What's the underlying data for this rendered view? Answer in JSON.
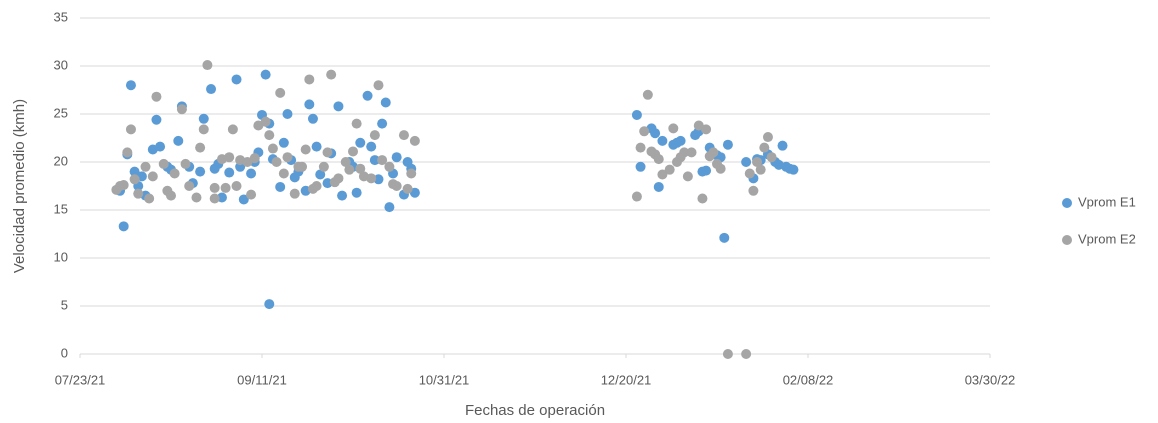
{
  "chart_data": {
    "type": "scatter",
    "xlabel": "Fechas de operación",
    "ylabel": "Velocidad promedio (kmh)",
    "xlim": [
      "07/23/21",
      "03/30/22"
    ],
    "xticks": [
      "07/23/21",
      "09/11/21",
      "10/31/21",
      "12/20/21",
      "02/08/22",
      "03/30/22"
    ],
    "ylim": [
      0,
      35
    ],
    "yticks": [
      0,
      5,
      10,
      15,
      20,
      25,
      30,
      35
    ],
    "grid": true,
    "legend": "right",
    "series": [
      {
        "name": "Vprom E1",
        "color": "#5b9bd5",
        "x": [
          "08/03/21",
          "08/04/21",
          "08/05/21",
          "08/06/21",
          "08/07/21",
          "08/08/21",
          "08/09/21",
          "08/10/21",
          "08/12/21",
          "08/13/21",
          "08/14/21",
          "08/16/21",
          "08/17/21",
          "08/19/21",
          "08/20/21",
          "08/22/21",
          "08/23/21",
          "08/25/21",
          "08/26/21",
          "08/28/21",
          "08/29/21",
          "08/30/21",
          "08/31/21",
          "09/02/21",
          "09/04/21",
          "09/05/21",
          "09/06/21",
          "09/08/21",
          "09/09/21",
          "09/10/21",
          "09/11/21",
          "09/12/21",
          "09/13/21",
          "09/13/21",
          "09/14/21",
          "09/16/21",
          "09/17/21",
          "09/18/21",
          "09/19/21",
          "09/20/21",
          "09/21/21",
          "09/23/21",
          "09/24/21",
          "09/25/21",
          "09/26/21",
          "09/27/21",
          "09/29/21",
          "09/30/21",
          "10/02/21",
          "10/03/21",
          "10/05/21",
          "10/06/21",
          "10/07/21",
          "10/08/21",
          "10/10/21",
          "10/11/21",
          "10/12/21",
          "10/13/21",
          "10/14/21",
          "10/15/21",
          "10/16/21",
          "10/17/21",
          "10/18/21",
          "10/20/21",
          "10/21/21",
          "10/22/21",
          "10/23/21",
          "12/23/21",
          "12/24/21",
          "12/27/21",
          "12/28/21",
          "12/29/21",
          "12/30/21",
          "01/02/22",
          "01/03/22",
          "01/04/22",
          "01/08/22",
          "01/09/22",
          "01/10/22",
          "01/11/22",
          "01/12/22",
          "01/14/22",
          "01/15/22",
          "01/16/22",
          "01/17/22",
          "01/22/22",
          "01/24/22",
          "01/25/22",
          "01/26/22",
          "01/28/22",
          "01/30/22",
          "01/31/22",
          "02/01/22",
          "02/02/22",
          "02/03/22",
          "02/04/22"
        ],
        "values": [
          17,
          13.3,
          20.8,
          28,
          19,
          17.5,
          18.5,
          16.5,
          21.3,
          24.4,
          21.6,
          19.5,
          19.2,
          22.2,
          25.8,
          19.5,
          17.8,
          19,
          24.5,
          27.6,
          19.3,
          19.8,
          16.3,
          18.9,
          28.6,
          19.5,
          16.1,
          18.8,
          20,
          21,
          24.9,
          29.1,
          24,
          5.2,
          20.3,
          17.4,
          22,
          25,
          20.2,
          18.4,
          19,
          17,
          26,
          24.5,
          21.6,
          18.7,
          17.8,
          20.9,
          25.8,
          16.5,
          20,
          19.5,
          16.8,
          22,
          26.9,
          21.6,
          20.2,
          18.2,
          24,
          26.2,
          15.3,
          18.8,
          20.5,
          16.6,
          20,
          19.3,
          16.8,
          24.9,
          19.5,
          23.5,
          23,
          17.4,
          22.2,
          21.8,
          22,
          22.2,
          22.8,
          23.2,
          19,
          19.1,
          21.5,
          20.7,
          20.5,
          12.1,
          21.8,
          20,
          18.3,
          20.3,
          20.2,
          20.8,
          20,
          19.7,
          21.7,
          19.5,
          19.3,
          19.2
        ]
      },
      {
        "name": "Vprom E2",
        "color": "#a5a5a5",
        "x": [
          "08/02/21",
          "08/03/21",
          "08/04/21",
          "08/05/21",
          "08/06/21",
          "08/07/21",
          "08/08/21",
          "08/10/21",
          "08/11/21",
          "08/12/21",
          "08/13/21",
          "08/15/21",
          "08/16/21",
          "08/17/21",
          "08/18/21",
          "08/20/21",
          "08/21/21",
          "08/22/21",
          "08/24/21",
          "08/25/21",
          "08/26/21",
          "08/27/21",
          "08/29/21",
          "08/29/21",
          "08/31/21",
          "09/01/21",
          "09/02/21",
          "09/03/21",
          "09/04/21",
          "09/05/21",
          "09/07/21",
          "09/08/21",
          "09/09/21",
          "09/10/21",
          "09/12/21",
          "09/13/21",
          "09/14/21",
          "09/15/21",
          "09/16/21",
          "09/17/21",
          "09/18/21",
          "09/20/21",
          "09/21/21",
          "09/22/21",
          "09/23/21",
          "09/24/21",
          "09/25/21",
          "09/26/21",
          "09/28/21",
          "09/29/21",
          "09/30/21",
          "10/01/21",
          "10/02/21",
          "10/04/21",
          "10/05/21",
          "10/06/21",
          "10/07/21",
          "10/08/21",
          "10/09/21",
          "10/11/21",
          "10/12/21",
          "10/13/21",
          "10/14/21",
          "10/16/21",
          "10/17/21",
          "10/18/21",
          "10/20/21",
          "10/21/21",
          "10/22/21",
          "10/23/21",
          "12/23/21",
          "12/24/21",
          "12/25/21",
          "12/26/21",
          "12/27/21",
          "12/28/21",
          "12/29/21",
          "12/30/21",
          "01/01/22",
          "01/02/22",
          "01/03/22",
          "01/04/22",
          "01/05/22",
          "01/06/22",
          "01/07/22",
          "01/09/22",
          "01/10/22",
          "01/11/22",
          "01/12/22",
          "01/13/22",
          "01/14/22",
          "01/15/22",
          "01/17/22",
          "01/22/22",
          "01/23/22",
          "01/24/22",
          "01/25/22",
          "01/26/22",
          "01/27/22",
          "01/28/22",
          "01/29/22"
        ],
        "values": [
          17.1,
          17.5,
          17.6,
          21,
          23.4,
          18.2,
          16.7,
          19.5,
          16.2,
          18.5,
          26.8,
          19.8,
          17,
          16.5,
          18.8,
          25.5,
          19.8,
          17.5,
          16.3,
          21.5,
          23.4,
          30.1,
          16.2,
          17.3,
          20.3,
          17.3,
          20.5,
          23.4,
          17.5,
          20.2,
          20,
          16.6,
          20.4,
          23.8,
          24.2,
          22.8,
          21.4,
          20,
          27.2,
          18.8,
          20.5,
          16.7,
          19.5,
          19.5,
          21.3,
          28.6,
          17.2,
          17.5,
          19.5,
          21,
          29.1,
          17.9,
          18.3,
          20,
          19.2,
          21.1,
          24,
          19.3,
          18.5,
          18.3,
          22.8,
          28,
          20.2,
          19.5,
          17.7,
          17.5,
          22.8,
          17.2,
          18.8,
          22.2,
          16.4,
          21.5,
          23.2,
          27,
          21.1,
          20.8,
          20.3,
          18.7,
          19.2,
          23.5,
          20,
          20.5,
          21,
          18.5,
          21,
          23.8,
          16.2,
          23.4,
          20.6,
          21,
          19.8,
          19.3,
          0,
          0,
          18.8,
          17,
          20,
          19.2,
          21.5,
          22.6,
          20.5
        ]
      }
    ]
  }
}
